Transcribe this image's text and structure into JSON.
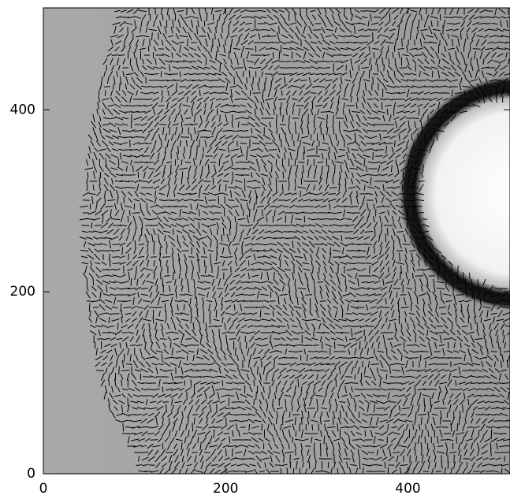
{
  "chart_data": {
    "type": "image",
    "xlim": [
      0,
      512
    ],
    "ylim": [
      0,
      512
    ],
    "xticks": [
      0,
      200,
      400
    ],
    "yticks": [
      0,
      200,
      400
    ]
  }
}
